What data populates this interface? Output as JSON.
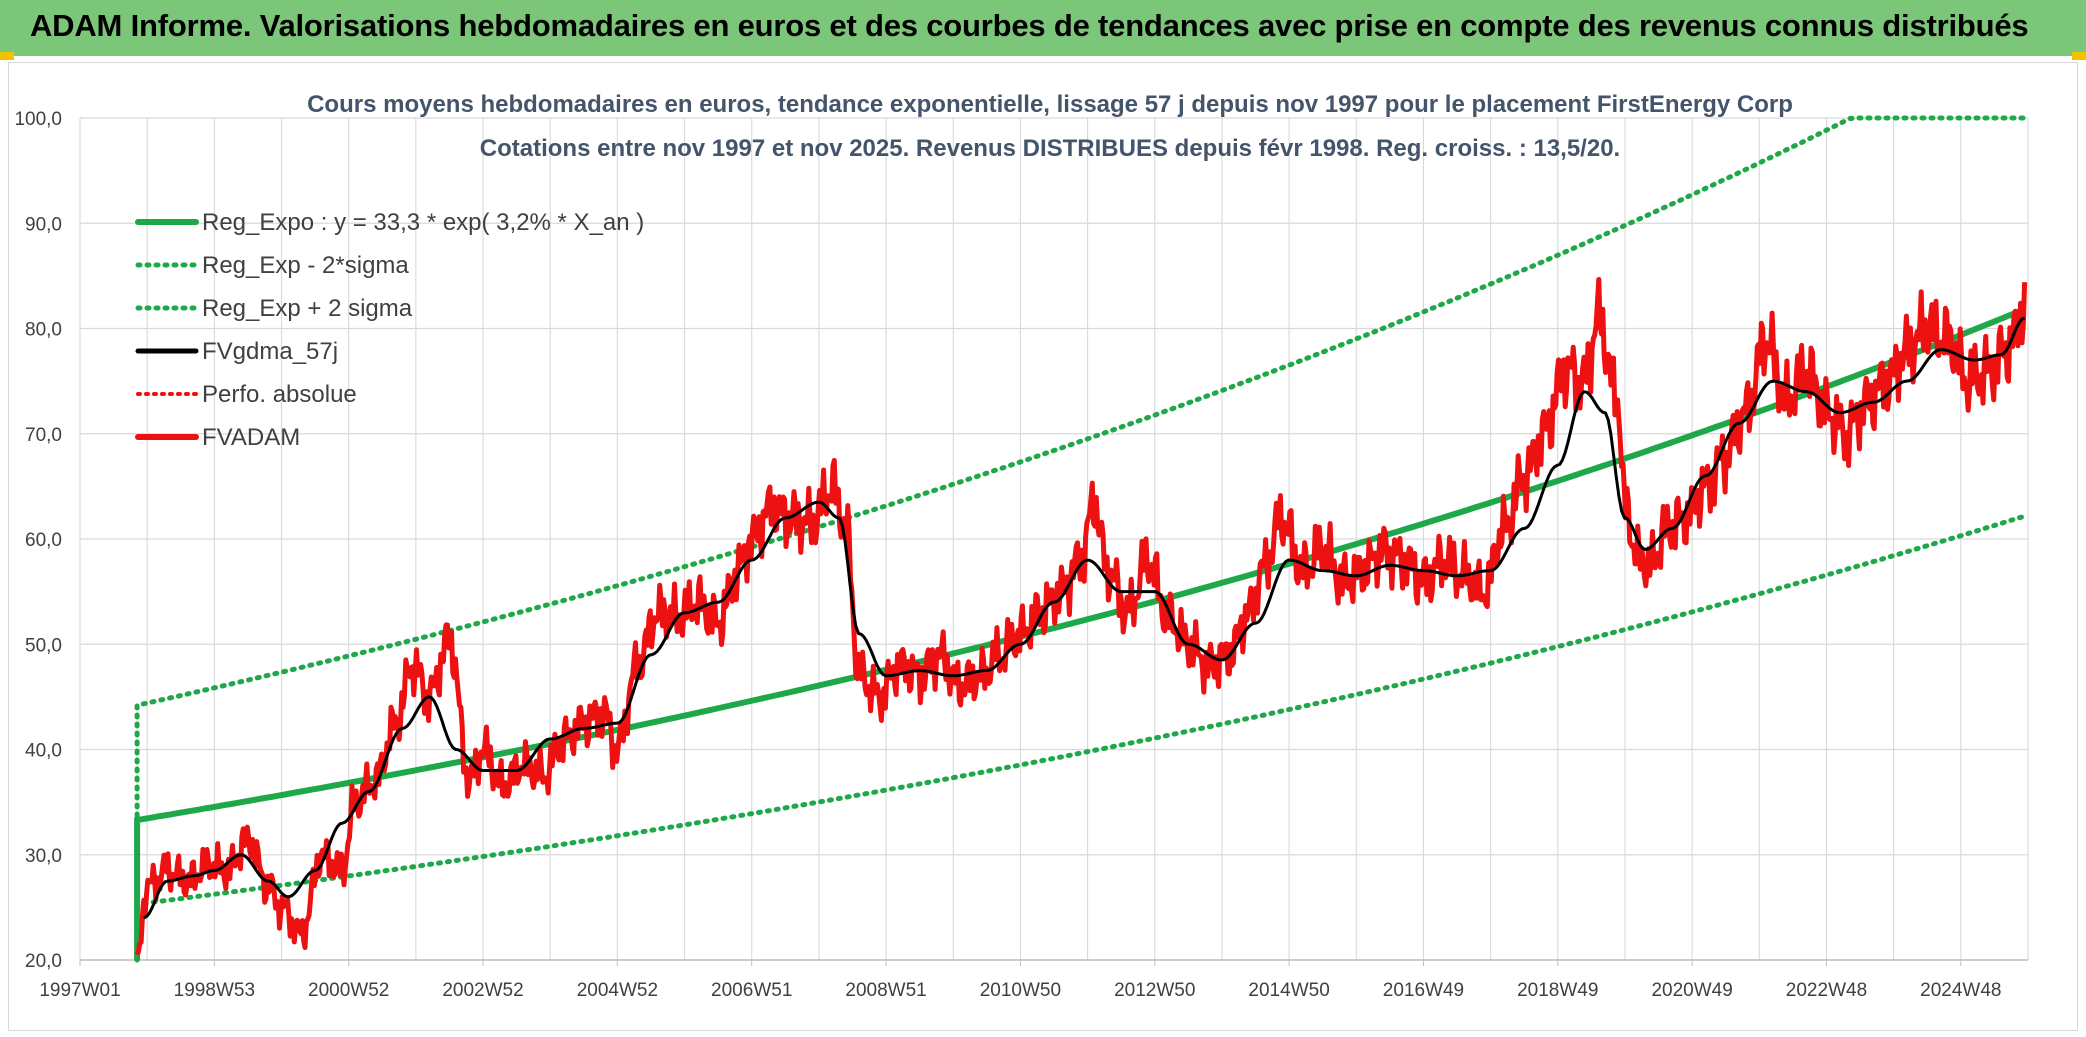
{
  "banner": {
    "title": "ADAM Informe. Valorisations hebdomadaires en euros et des courbes de tendances avec prise en compte des revenus connus distribués"
  },
  "colors": {
    "banner_bg": "#7cc67a",
    "banner_accent": "#f2c200",
    "trend_green": "#1fa84a",
    "ma_black": "#000000",
    "price_red": "#ee1111",
    "grid": "#d9d9d9",
    "text": "#404040",
    "title_text": "#44546a"
  },
  "chart_data": {
    "type": "line",
    "title": "Cours moyens hebdomadaires en euros, tendance exponentielle, lissage 57 j depuis nov 1997 pour le placement FirstEnergy Corp",
    "subtitle": "Cotations entre nov 1997 et nov 2025. Revenus DISTRIBUES depuis févr 1998. Reg. croiss. : 13,5/20.",
    "xlabel": "",
    "ylabel": "",
    "x_range": [
      1997.0,
      2026.0
    ],
    "ylim": [
      20,
      100
    ],
    "y_ticks": [
      "20,0",
      "30,0",
      "40,0",
      "50,0",
      "60,0",
      "70,0",
      "80,0",
      "90,0",
      "100,0"
    ],
    "x_tick_labels": [
      "1997W01",
      "1998W53",
      "2000W52",
      "2002W52",
      "2004W52",
      "2006W51",
      "2008W51",
      "2010W50",
      "2012W50",
      "2014W50",
      "2016W49",
      "2018W49",
      "2020W49",
      "2022W48",
      "2024W48"
    ],
    "legend": [
      {
        "name": "Reg_Expo : y = 33,3 * exp( 3,2% *  X_an )",
        "style": "solid-green"
      },
      {
        "name": "Reg_Exp - 2*sigma",
        "style": "dotted-green"
      },
      {
        "name": "Reg_Exp + 2 sigma",
        "style": "dotted-green"
      },
      {
        "name": "FVgdma_57j",
        "style": "solid-black"
      },
      {
        "name": "Perfo. absolue",
        "style": "dotted-red"
      },
      {
        "name": "FVADAM",
        "style": "solid-red"
      }
    ],
    "series": [
      {
        "name": "Reg_Expo",
        "x": [
          1997.85,
          2026.0
        ],
        "start_value": 33.3,
        "growth_rate": 0.032
      },
      {
        "name": "Reg_Exp - 2*sigma",
        "x": [
          1997.85,
          2026.0
        ],
        "start_value": 25.3,
        "growth_rate": 0.032
      },
      {
        "name": "Reg_Exp + 2 sigma",
        "x": [
          1997.85,
          2026.0
        ],
        "start_value": 44.2,
        "growth_rate": 0.032,
        "cap": 100
      },
      {
        "name": "FVADAM",
        "x": [
          1997.85,
          1998.0,
          1998.3,
          1998.6,
          1998.9,
          1999.2,
          1999.5,
          1999.8,
          2000.0,
          2000.3,
          2000.6,
          2000.9,
          2001.1,
          2001.4,
          2001.7,
          2001.95,
          2002.2,
          2002.5,
          2002.8,
          2003.0,
          2003.3,
          2003.6,
          2003.9,
          2004.2,
          2004.5,
          2004.8,
          2005.0,
          2005.3,
          2005.6,
          2005.9,
          2006.2,
          2006.5,
          2006.8,
          2007.0,
          2007.3,
          2007.6,
          2007.9,
          2008.2,
          2008.4,
          2008.6,
          2008.9,
          2009.2,
          2009.5,
          2009.8,
          2010.1,
          2010.4,
          2010.7,
          2011.0,
          2011.3,
          2011.6,
          2011.9,
          2012.1,
          2012.3,
          2012.6,
          2012.9,
          2013.2,
          2013.5,
          2013.8,
          2014.1,
          2014.4,
          2014.6,
          2014.9,
          2015.2,
          2015.5,
          2015.8,
          2016.1,
          2016.4,
          2016.7,
          2017.0,
          2017.3,
          2017.6,
          2017.9,
          2018.2,
          2018.5,
          2018.8,
          2019.1,
          2019.4,
          2019.6,
          2019.9,
          2020.0,
          2020.2,
          2020.4,
          2020.6,
          2020.9,
          2021.2,
          2021.5,
          2021.8,
          2022.1,
          2022.4,
          2022.7,
          2023.0,
          2023.3,
          2023.6,
          2023.9,
          2024.2,
          2024.5,
          2024.8,
          2025.1,
          2025.4,
          2025.7,
          2025.95
        ],
        "values": [
          20.5,
          27.0,
          28.5,
          27.5,
          29.0,
          28.5,
          31.5,
          27.0,
          25.0,
          22.5,
          30.0,
          28.5,
          35.0,
          37.0,
          42.5,
          48.0,
          45.0,
          50.5,
          37.0,
          40.0,
          36.5,
          38.5,
          37.5,
          41.0,
          42.5,
          43.5,
          40.0,
          48.0,
          53.0,
          52.5,
          54.0,
          52.0,
          57.0,
          60.0,
          63.0,
          62.0,
          61.5,
          65.0,
          61.0,
          47.0,
          45.0,
          48.0,
          47.0,
          49.0,
          46.0,
          47.0,
          49.0,
          51.0,
          53.0,
          55.0,
          58.0,
          63.5,
          57.0,
          53.0,
          58.0,
          52.5,
          50.0,
          48.0,
          49.0,
          53.0,
          57.0,
          62.0,
          57.0,
          59.0,
          56.0,
          57.0,
          59.0,
          58.0,
          56.0,
          58.0,
          56.5,
          55.0,
          61.0,
          66.0,
          70.0,
          76.0,
          75.0,
          81.0,
          73.0,
          63.0,
          58.0,
          57.5,
          61.0,
          62.0,
          65.0,
          68.0,
          72.0,
          79.0,
          73.0,
          76.0,
          72.0,
          70.0,
          73.0,
          75.0,
          78.0,
          80.0,
          79.0,
          75.0,
          76.0,
          78.0,
          82.0
        ]
      },
      {
        "name": "FVgdma_57j",
        "x": [
          1997.95,
          1998.3,
          1998.7,
          1999.0,
          1999.4,
          1999.8,
          2000.1,
          2000.5,
          2000.9,
          2001.3,
          2001.8,
          2002.2,
          2002.6,
          2003.0,
          2003.5,
          2004.0,
          2004.5,
          2005.0,
          2005.5,
          2006.0,
          2006.5,
          2007.0,
          2007.5,
          2008.0,
          2008.3,
          2008.6,
          2009.0,
          2009.5,
          2010.0,
          2010.5,
          2011.0,
          2011.5,
          2012.0,
          2012.5,
          2013.0,
          2013.5,
          2014.0,
          2014.5,
          2015.0,
          2015.5,
          2016.0,
          2016.5,
          2017.0,
          2017.5,
          2018.0,
          2018.5,
          2019.0,
          2019.4,
          2019.7,
          2020.0,
          2020.3,
          2020.7,
          2021.2,
          2021.7,
          2022.2,
          2022.7,
          2023.2,
          2023.7,
          2024.2,
          2024.7,
          2025.2,
          2025.6,
          2025.95
        ],
        "values": [
          24.0,
          27.5,
          28.0,
          28.5,
          30.0,
          27.5,
          26.0,
          28.5,
          33.0,
          36.0,
          42.0,
          45.0,
          40.0,
          38.0,
          38.0,
          41.0,
          42.0,
          42.5,
          49.0,
          53.0,
          54.0,
          58.0,
          62.0,
          63.5,
          62.0,
          51.0,
          47.0,
          47.5,
          47.0,
          47.5,
          50.0,
          54.0,
          58.0,
          55.0,
          55.0,
          50.0,
          48.5,
          52.0,
          58.0,
          57.0,
          56.5,
          57.5,
          57.0,
          56.5,
          57.0,
          61.0,
          67.0,
          74.0,
          72.0,
          62.0,
          59.0,
          61.0,
          66.0,
          71.0,
          75.0,
          74.0,
          72.0,
          73.0,
          75.0,
          78.0,
          77.0,
          77.5,
          81.0
        ]
      }
    ]
  }
}
